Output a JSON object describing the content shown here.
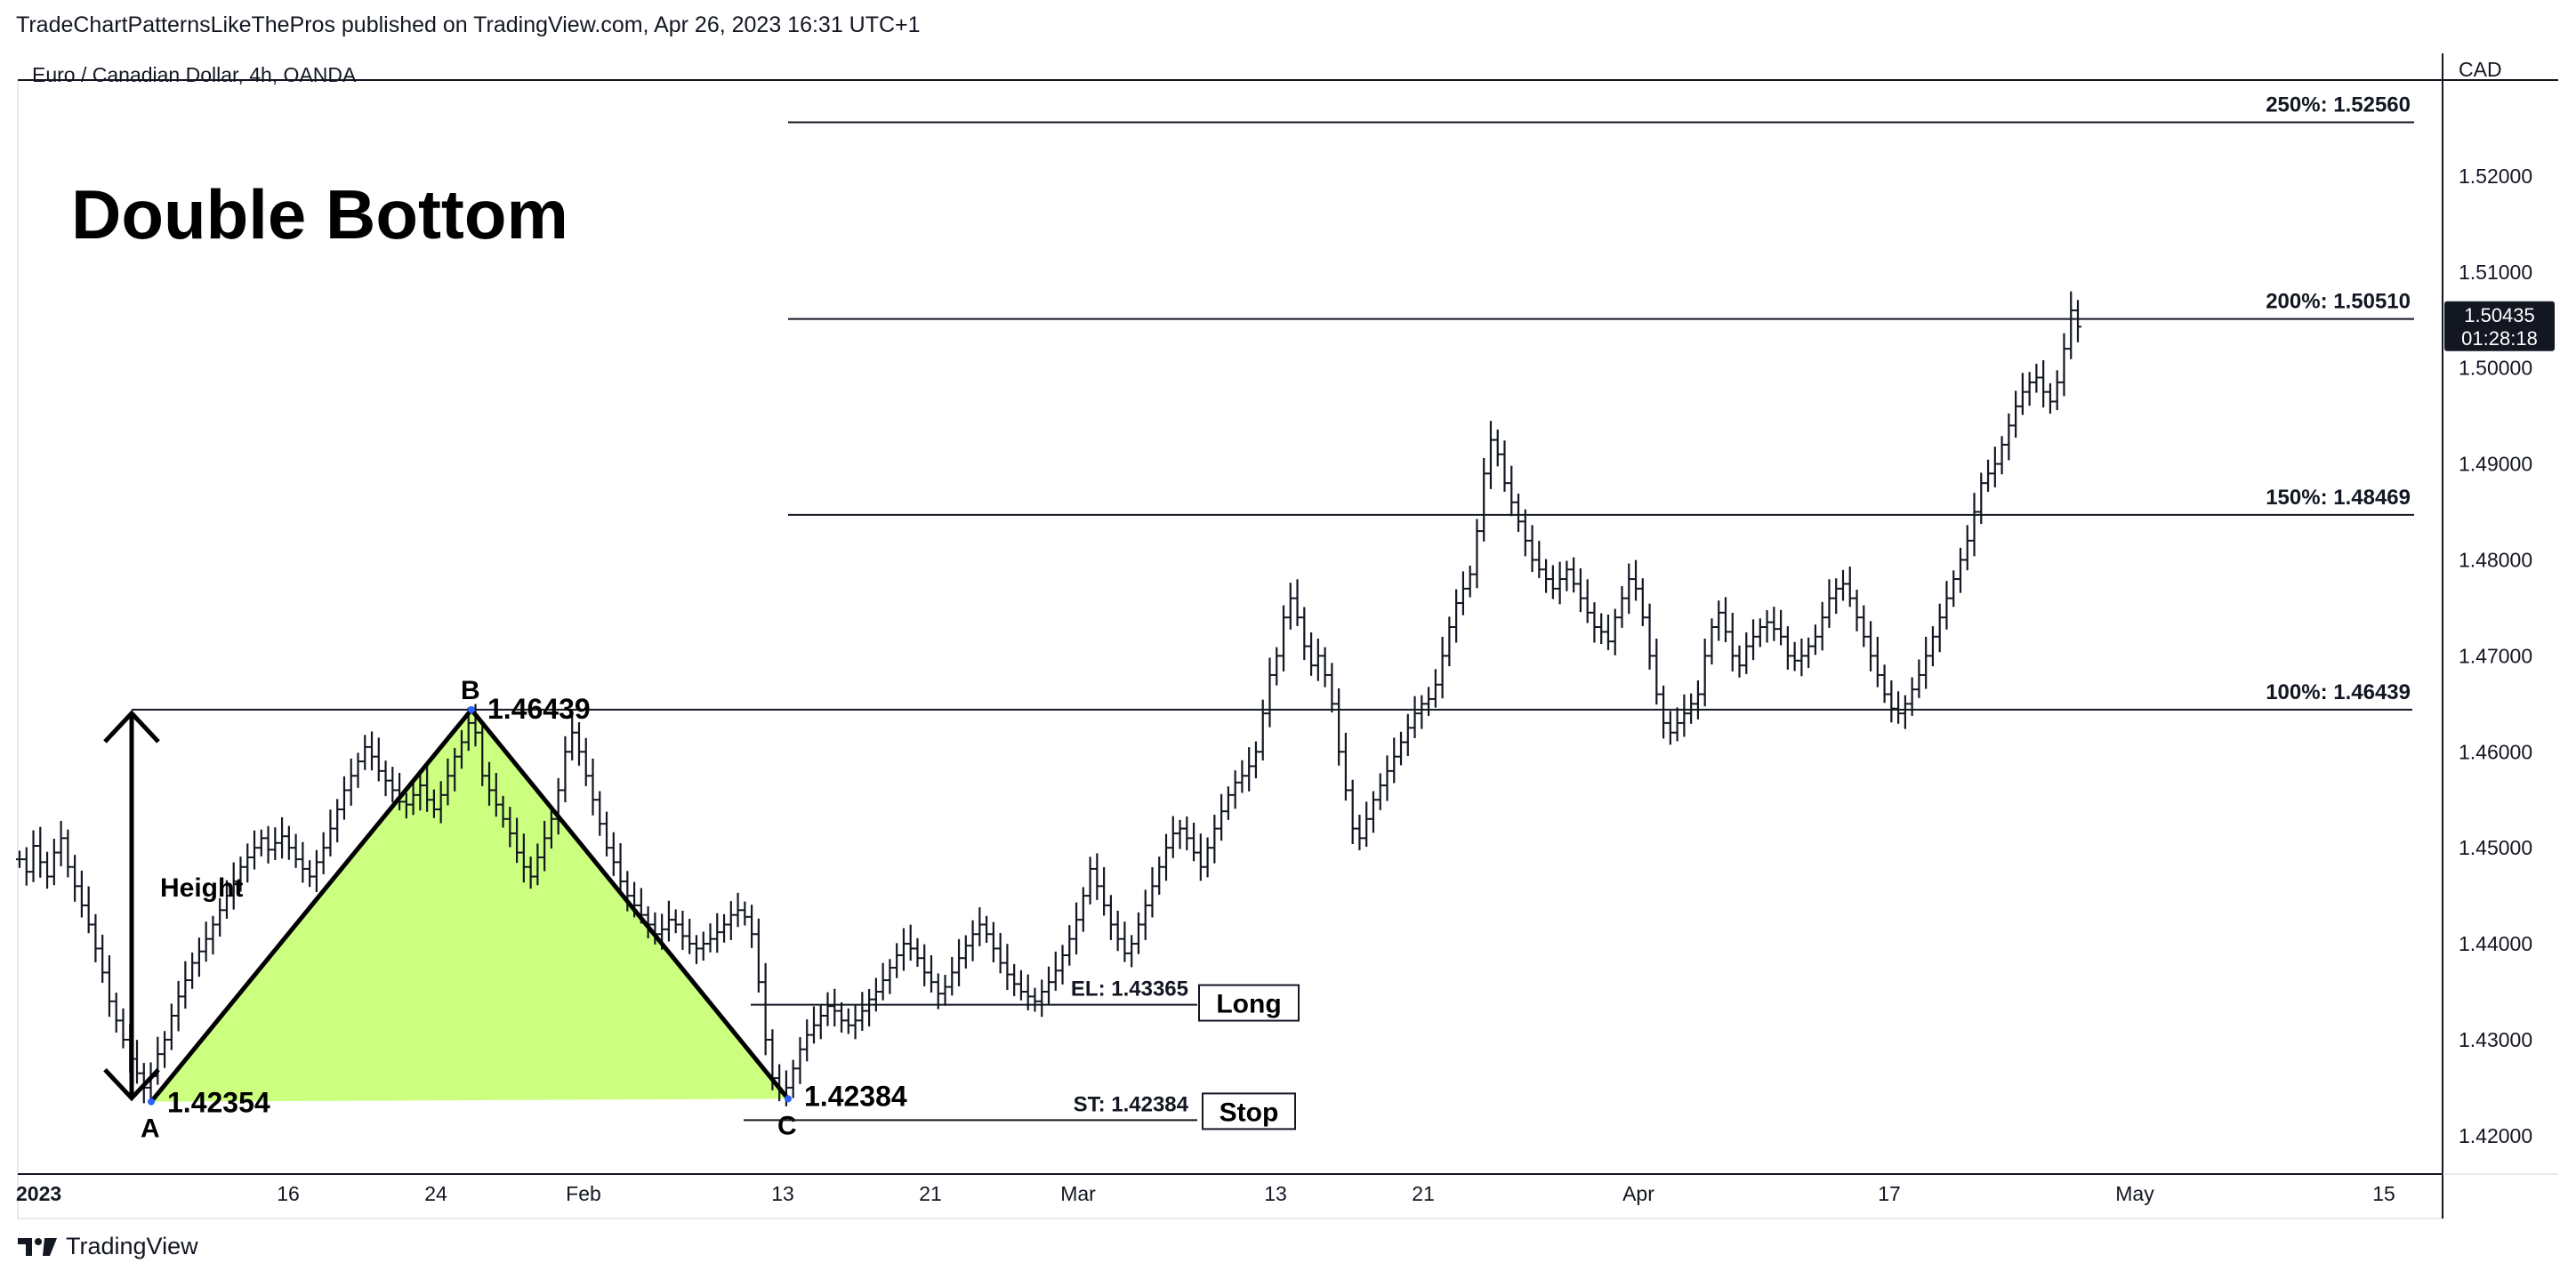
{
  "header": {
    "published_line": "TradeChartPatternsLikeThePros published on TradingView.com, Apr 26, 2023 16:31 UTC+1",
    "symbol_line": "Euro / Canadian Dollar, 4h, OANDA"
  },
  "footer": {
    "brand": "TradingView"
  },
  "chart_data": {
    "type": "bar",
    "title": "Double Bottom",
    "currency_label": "CAD",
    "ylim": [
      1.416,
      1.53
    ],
    "y_ticks": [
      "1.42000",
      "1.43000",
      "1.44000",
      "1.45000",
      "1.46000",
      "1.47000",
      "1.48000",
      "1.49000",
      "1.50000",
      "1.51000",
      "1.52000"
    ],
    "x_ticks": [
      "2023",
      "16",
      "24",
      "Feb",
      "13",
      "21",
      "Mar",
      "13",
      "21",
      "Apr",
      "17",
      "May",
      "15"
    ],
    "current_price": "1.50435",
    "countdown": "01:28:18",
    "fib_levels": [
      {
        "label": "250%: 1.52560",
        "price": 1.5256
      },
      {
        "label": "200%: 1.50510",
        "price": 1.5051
      },
      {
        "label": "150%: 1.48469",
        "price": 1.48469
      },
      {
        "label": "100%: 1.46439",
        "price": 1.46439
      }
    ],
    "points": {
      "A": {
        "label": "A",
        "price_label": "1.42354",
        "price": 1.42354
      },
      "B": {
        "label": "B",
        "price_label": "1.46439",
        "price": 1.46439
      },
      "C": {
        "label": "C",
        "price_label": "1.42384",
        "price": 1.42384
      }
    },
    "height_label": "Height",
    "entry": {
      "label": "EL: 1.43365",
      "price": 1.43365,
      "tag": "Long"
    },
    "stop": {
      "label": "ST: 1.42384",
      "price": 1.42384,
      "tag": "Stop"
    },
    "pattern_fill_color": "#ccff80",
    "price_series": [
      1.4488,
      1.4475,
      1.4502,
      1.4485,
      1.447,
      1.4495,
      1.451,
      1.448,
      1.446,
      1.444,
      1.442,
      1.4395,
      1.437,
      1.434,
      1.432,
      1.43,
      1.428,
      1.4265,
      1.425,
      1.4262,
      1.4285,
      1.43,
      1.4325,
      1.4345,
      1.4362,
      1.438,
      1.4392,
      1.4405,
      1.442,
      1.4435,
      1.445,
      1.4465,
      1.448,
      1.449,
      1.45,
      1.451,
      1.4498,
      1.4505,
      1.4512,
      1.45,
      1.4488,
      1.4478,
      1.447,
      1.4485,
      1.45,
      1.452,
      1.454,
      1.456,
      1.4575,
      1.459,
      1.4605,
      1.4595,
      1.458,
      1.457,
      1.456,
      1.4548,
      1.4545,
      1.4555,
      1.4565,
      1.455,
      1.454,
      1.4555,
      1.4575,
      1.4595,
      1.461,
      1.463,
      1.462,
      1.4575,
      1.456,
      1.4545,
      1.453,
      1.4515,
      1.4495,
      1.448,
      1.447,
      1.449,
      1.451,
      1.453,
      1.456,
      1.46,
      1.462,
      1.46,
      1.4575,
      1.455,
      1.4525,
      1.45,
      1.4485,
      1.4465,
      1.445,
      1.444,
      1.443,
      1.442,
      1.441,
      1.4415,
      1.4425,
      1.442,
      1.4408,
      1.44,
      1.4395,
      1.44,
      1.4405,
      1.4412,
      1.442,
      1.443,
      1.4435,
      1.4428,
      1.441,
      1.436,
      1.43,
      1.426,
      1.4245,
      1.425,
      1.427,
      1.429,
      1.4305,
      1.4315,
      1.4325,
      1.4335,
      1.433,
      1.432,
      1.4315,
      1.432,
      1.433,
      1.4342,
      1.435,
      1.4362,
      1.4375,
      1.4388,
      1.44,
      1.4395,
      1.4385,
      1.437,
      1.436,
      1.4348,
      1.4355,
      1.437,
      1.4385,
      1.4398,
      1.441,
      1.442,
      1.441,
      1.4395,
      1.438,
      1.4368,
      1.4358,
      1.435,
      1.4345,
      1.434,
      1.435,
      1.436,
      1.4372,
      1.4388,
      1.4405,
      1.4425,
      1.445,
      1.4478,
      1.446,
      1.444,
      1.442,
      1.4405,
      1.439,
      1.44,
      1.442,
      1.444,
      1.446,
      1.448,
      1.45,
      1.4515,
      1.452,
      1.451,
      1.4495,
      1.448,
      1.45,
      1.452,
      1.4538,
      1.4555,
      1.4568,
      1.4575,
      1.4585,
      1.46,
      1.464,
      1.468,
      1.47,
      1.474,
      1.476,
      1.474,
      1.471,
      1.469,
      1.47,
      1.468,
      1.465,
      1.46,
      1.456,
      1.452,
      1.451,
      1.453,
      1.455,
      1.4565,
      1.458,
      1.4595,
      1.461,
      1.4625,
      1.464,
      1.465,
      1.4655,
      1.467,
      1.47,
      1.473,
      1.4755,
      1.477,
      1.4785,
      1.483,
      1.489,
      1.4925,
      1.491,
      1.488,
      1.486,
      1.484,
      1.482,
      1.48,
      1.479,
      1.478,
      1.477,
      1.478,
      1.479,
      1.4775,
      1.476,
      1.4745,
      1.473,
      1.4725,
      1.4715,
      1.474,
      1.476,
      1.478,
      1.477,
      1.474,
      1.47,
      1.466,
      1.463,
      1.462,
      1.463,
      1.464,
      1.465,
      1.466,
      1.47,
      1.473,
      1.4745,
      1.4725,
      1.47,
      1.469,
      1.471,
      1.472,
      1.473,
      1.4735,
      1.4728,
      1.472,
      1.47,
      1.4695,
      1.47,
      1.471,
      1.472,
      1.474,
      1.476,
      1.477,
      1.4775,
      1.476,
      1.474,
      1.472,
      1.47,
      1.468,
      1.466,
      1.4645,
      1.464,
      1.465,
      1.4665,
      1.468,
      1.47,
      1.472,
      1.474,
      1.476,
      1.478,
      1.48,
      1.482,
      1.485,
      1.488,
      1.489,
      1.49,
      1.492,
      1.494,
      1.496,
      1.4975,
      1.4985,
      1.499,
      1.4975,
      1.4965,
      1.4985,
      1.502,
      1.506,
      1.5043
    ]
  }
}
